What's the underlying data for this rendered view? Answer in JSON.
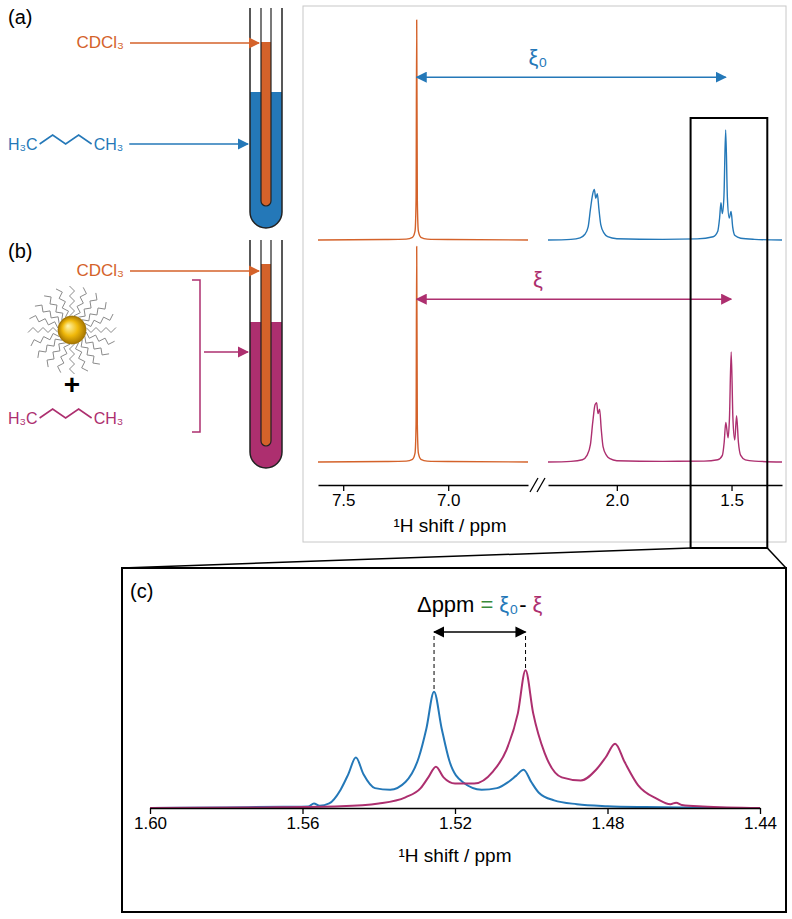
{
  "chart_data": [
    {
      "type": "line",
      "title": "(a)",
      "tick_labels": false,
      "xlim": [
        [
          7.62,
          6.62
        ],
        [
          2.3,
          1.28
        ]
      ],
      "ylim": [
        0,
        1
      ],
      "series": [
        {
          "color": "#d4622a",
          "x": [
            7.62,
            7.3,
            7.2,
            7.17,
            7.158,
            7.153,
            7.15,
            7.147,
            7.142,
            7.13,
            7.1,
            7.0,
            6.62
          ],
          "values": [
            0,
            0.002,
            0.004,
            0.012,
            0.04,
            0.18,
            1.0,
            0.18,
            0.04,
            0.012,
            0.004,
            0.002,
            0
          ]
        },
        {
          "color": "#2478b8",
          "x": [
            2.3,
            2.2,
            2.16,
            2.14,
            2.125,
            2.115,
            2.105,
            2.098,
            2.092,
            2.085,
            2.078,
            2.07,
            2.055,
            2.04,
            2.0,
            1.8,
            1.65,
            1.58,
            1.56,
            1.552,
            1.546,
            1.54,
            1.533,
            1.5255,
            1.518,
            1.51,
            1.502,
            1.495,
            1.485,
            1.46,
            1.4,
            1.28
          ],
          "values": [
            0,
            0.003,
            0.01,
            0.025,
            0.06,
            0.14,
            0.21,
            0.23,
            0.19,
            0.21,
            0.14,
            0.07,
            0.03,
            0.015,
            0.006,
            0.003,
            0.005,
            0.015,
            0.04,
            0.1,
            0.17,
            0.12,
            0.2,
            0.5,
            0.19,
            0.1,
            0.13,
            0.06,
            0.02,
            0.008,
            0.003,
            0
          ]
        }
      ],
      "annotations": [
        {
          "text": "CDCl₃",
          "color": "#d4622a"
        },
        {
          "text": "H₃C",
          "color": "#2478b8"
        },
        {
          "text": "CH₃",
          "color": "#2478b8"
        },
        {
          "text": "ξ₀",
          "color": "#2478b8",
          "x": [
            7.15,
            1.5255
          ]
        }
      ]
    },
    {
      "type": "line",
      "title": "(b)",
      "tick_labels": "x",
      "xlabel": "¹H shift / ppm",
      "xlim": [
        [
          7.62,
          6.62
        ],
        [
          2.3,
          1.28
        ]
      ],
      "xticks": [
        [
          7.5,
          {
            "value": 7,
            "label": "7.0"
          }
        ],
        [
          {
            "value": 2,
            "label": "2.0"
          },
          1.5
        ]
      ],
      "ylim": [
        0,
        1
      ],
      "series": [
        {
          "color": "#d4622a",
          "x": [
            7.62,
            7.3,
            7.2,
            7.17,
            7.158,
            7.153,
            7.15,
            7.147,
            7.142,
            7.13,
            7.1,
            7.0,
            6.62
          ],
          "values": [
            0,
            0.002,
            0.004,
            0.012,
            0.04,
            0.17,
            0.98,
            0.17,
            0.04,
            0.012,
            0.004,
            0.002,
            0
          ]
        },
        {
          "color": "#ad2f6f",
          "x": [
            2.3,
            2.2,
            2.15,
            2.13,
            2.115,
            2.105,
            2.095,
            2.088,
            2.082,
            2.075,
            2.068,
            2.06,
            2.045,
            2.03,
            2.0,
            1.8,
            1.62,
            1.56,
            1.54,
            1.532,
            1.525,
            1.515,
            1.509,
            1.5015,
            1.494,
            1.486,
            1.478,
            1.47,
            1.46,
            1.44,
            1.4,
            1.28
          ],
          "values": [
            0,
            0.003,
            0.01,
            0.03,
            0.08,
            0.18,
            0.26,
            0.27,
            0.22,
            0.24,
            0.15,
            0.07,
            0.03,
            0.015,
            0.006,
            0.003,
            0.004,
            0.01,
            0.03,
            0.09,
            0.18,
            0.11,
            0.2,
            0.5,
            0.2,
            0.1,
            0.21,
            0.09,
            0.03,
            0.01,
            0.004,
            0
          ]
        }
      ],
      "annotations": [
        {
          "text": "CDCl₃",
          "color": "#d4622a"
        },
        {
          "text": "+",
          "color": "#000000"
        },
        {
          "text": "H₃C",
          "color": "#ad2f6f"
        },
        {
          "text": "CH₃",
          "color": "#ad2f6f"
        },
        {
          "text": "ξ",
          "color": "#ad2f6f",
          "x": [
            7.15,
            1.5015
          ]
        }
      ]
    },
    {
      "type": "line",
      "title": "(c)",
      "tick_labels": "x",
      "xlabel": "¹H shift / ppm",
      "xlim": [
        1.6,
        1.44
      ],
      "xticks": [
        {
          "value": 1.6,
          "label": "1.60"
        },
        1.56,
        1.52,
        1.48,
        1.44
      ],
      "ylim": [
        0,
        1
      ],
      "series": [
        {
          "color": "#2478b8",
          "x": [
            1.6,
            1.58,
            1.565,
            1.5585,
            1.557,
            1.5555,
            1.553,
            1.55,
            1.548,
            1.546,
            1.544,
            1.541,
            1.537,
            1.533,
            1.5295,
            1.5275,
            1.5255,
            1.5235,
            1.5215,
            1.518,
            1.513,
            1.509,
            1.506,
            1.504,
            1.502,
            1.5,
            1.498,
            1.494,
            1.488,
            1.48,
            1.47,
            1.46,
            1.44
          ],
          "values": [
            0,
            0.004,
            0.008,
            0.01,
            0.03,
            0.015,
            0.03,
            0.12,
            0.22,
            0.33,
            0.22,
            0.13,
            0.12,
            0.17,
            0.33,
            0.52,
            0.76,
            0.52,
            0.31,
            0.17,
            0.12,
            0.13,
            0.17,
            0.21,
            0.25,
            0.17,
            0.1,
            0.05,
            0.025,
            0.012,
            0.006,
            0.003,
            0
          ]
        },
        {
          "color": "#ad2f6f",
          "x": [
            1.6,
            1.57,
            1.55,
            1.54,
            1.533,
            1.529,
            1.527,
            1.525,
            1.523,
            1.52,
            1.515,
            1.51,
            1.5065,
            1.5035,
            1.5015,
            1.4995,
            1.4965,
            1.492,
            1.487,
            1.483,
            1.4805,
            1.478,
            1.4755,
            1.472,
            1.467,
            1.4635,
            1.462,
            1.4605,
            1.455,
            1.44
          ],
          "values": [
            0,
            0.004,
            0.012,
            0.03,
            0.07,
            0.13,
            0.2,
            0.27,
            0.2,
            0.16,
            0.16,
            0.24,
            0.38,
            0.62,
            0.9,
            0.62,
            0.36,
            0.2,
            0.18,
            0.25,
            0.33,
            0.42,
            0.3,
            0.15,
            0.06,
            0.025,
            0.035,
            0.02,
            0.01,
            0
          ]
        }
      ],
      "annotations": [
        {
          "parts": [
            {
              "text": "Δppm",
              "color": "#000000"
            },
            {
              "text": "=",
              "color": "#3a8a3a"
            },
            {
              "text": "ξ₀",
              "color": "#2478b8"
            },
            {
              "text": "-",
              "color": "#000000"
            },
            {
              "text": "ξ",
              "color": "#ad2f6f"
            }
          ],
          "x": [
            1.5255,
            1.5015
          ]
        }
      ]
    }
  ]
}
